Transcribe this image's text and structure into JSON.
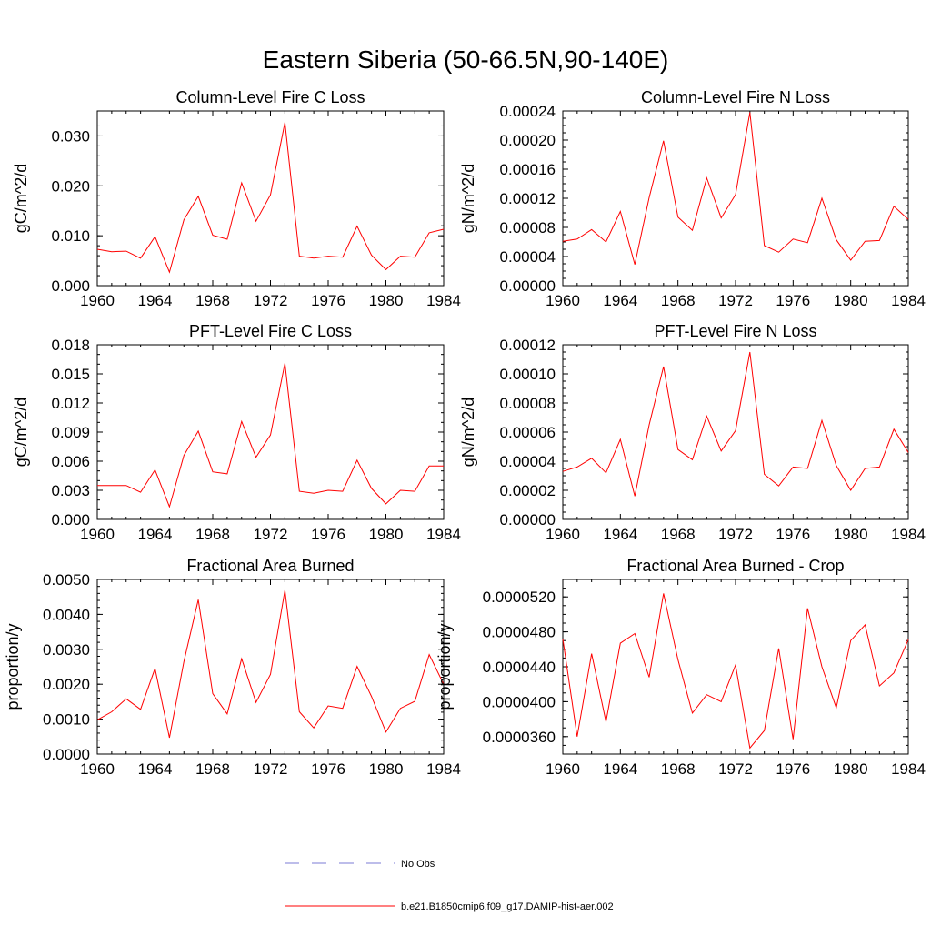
{
  "title": "Eastern Siberia (50-66.5N,90-140E)",
  "colors": {
    "model_line": "#ff0000",
    "obs_line": "#7b7bd6",
    "axis": "#000000"
  },
  "legend": {
    "entries": [
      {
        "label": "No Obs",
        "style": "dashed",
        "color": "#7b7bd6"
      },
      {
        "label": "b.e21.B1850cmip6.f09_g17.DAMIP-hist-aer.002",
        "style": "solid",
        "color": "#ff0000"
      }
    ]
  },
  "chart_data": [
    {
      "type": "line",
      "title": "Column-Level Fire C Loss",
      "ylabel": "gC/m^2/d",
      "xlim": [
        1960,
        1984
      ],
      "ylim": [
        0.0,
        0.035
      ],
      "xticks": [
        "1960",
        "1964",
        "1968",
        "1972",
        "1976",
        "1980",
        "1984"
      ],
      "yticks": [
        {
          "v": 0.0,
          "label": "0.000"
        },
        {
          "v": 0.01,
          "label": "0.010"
        },
        {
          "v": 0.02,
          "label": "0.020"
        },
        {
          "v": 0.03,
          "label": "0.030"
        }
      ],
      "yminor": 0.002,
      "x": [
        1960,
        1961,
        1962,
        1963,
        1964,
        1965,
        1966,
        1967,
        1968,
        1969,
        1970,
        1971,
        1972,
        1973,
        1974,
        1975,
        1976,
        1977,
        1978,
        1979,
        1980,
        1981,
        1982,
        1983,
        1984
      ],
      "series": [
        {
          "name": "b.e21.B1850cmip6.f09_g17.DAMIP-hist-aer.002",
          "values": [
            0.0073,
            0.0068,
            0.0069,
            0.0055,
            0.0098,
            0.0027,
            0.0132,
            0.0179,
            0.0101,
            0.0093,
            0.0206,
            0.0129,
            0.0182,
            0.0327,
            0.0059,
            0.0055,
            0.0059,
            0.0057,
            0.0119,
            0.0061,
            0.0032,
            0.0059,
            0.0057,
            0.0106,
            0.0113
          ]
        }
      ]
    },
    {
      "type": "line",
      "title": "Column-Level Fire N Loss",
      "ylabel": "gN/m^2/d",
      "xlim": [
        1960,
        1984
      ],
      "ylim": [
        0.0,
        0.00024
      ],
      "xticks": [
        "1960",
        "1964",
        "1968",
        "1972",
        "1976",
        "1980",
        "1984"
      ],
      "yticks": [
        {
          "v": 0.0,
          "label": "0.00000"
        },
        {
          "v": 4e-05,
          "label": "0.00004"
        },
        {
          "v": 8e-05,
          "label": "0.00008"
        },
        {
          "v": 0.00012,
          "label": "0.00012"
        },
        {
          "v": 0.00016,
          "label": "0.00016"
        },
        {
          "v": 0.0002,
          "label": "0.00020"
        },
        {
          "v": 0.00024,
          "label": "0.00024"
        }
      ],
      "yminor": 1e-05,
      "x": [
        1960,
        1961,
        1962,
        1963,
        1964,
        1965,
        1966,
        1967,
        1968,
        1969,
        1970,
        1971,
        1972,
        1973,
        1974,
        1975,
        1976,
        1977,
        1978,
        1979,
        1980,
        1981,
        1982,
        1983,
        1984
      ],
      "series": [
        {
          "name": "b.e21.B1850cmip6.f09_g17.DAMIP-hist-aer.002",
          "values": [
            6.1e-05,
            6.4e-05,
            7.7e-05,
            6e-05,
            0.000102,
            2.9e-05,
            0.000121,
            0.000199,
            9.4e-05,
            7.6e-05,
            0.000148,
            9.3e-05,
            0.000125,
            0.000238,
            5.5e-05,
            4.6e-05,
            6.4e-05,
            5.9e-05,
            0.00012,
            6.3e-05,
            3.5e-05,
            6.1e-05,
            6.2e-05,
            0.000109,
            9.1e-05
          ]
        }
      ]
    },
    {
      "type": "line",
      "title": "PFT-Level Fire C Loss",
      "ylabel": "gC/m^2/d",
      "xlim": [
        1960,
        1984
      ],
      "ylim": [
        0.0,
        0.018
      ],
      "xticks": [
        "1960",
        "1964",
        "1968",
        "1972",
        "1976",
        "1980",
        "1984"
      ],
      "yticks": [
        {
          "v": 0.0,
          "label": "0.000"
        },
        {
          "v": 0.003,
          "label": "0.003"
        },
        {
          "v": 0.006,
          "label": "0.006"
        },
        {
          "v": 0.009,
          "label": "0.009"
        },
        {
          "v": 0.012,
          "label": "0.012"
        },
        {
          "v": 0.015,
          "label": "0.015"
        },
        {
          "v": 0.018,
          "label": "0.018"
        }
      ],
      "yminor": 0.001,
      "x": [
        1960,
        1961,
        1962,
        1963,
        1964,
        1965,
        1966,
        1967,
        1968,
        1969,
        1970,
        1971,
        1972,
        1973,
        1974,
        1975,
        1976,
        1977,
        1978,
        1979,
        1980,
        1981,
        1982,
        1983,
        1984
      ],
      "series": [
        {
          "name": "b.e21.B1850cmip6.f09_g17.DAMIP-hist-aer.002",
          "values": [
            0.0035,
            0.0035,
            0.0035,
            0.0028,
            0.0051,
            0.0013,
            0.0066,
            0.0091,
            0.0049,
            0.0047,
            0.0101,
            0.0064,
            0.0087,
            0.0161,
            0.0029,
            0.0027,
            0.003,
            0.0029,
            0.0061,
            0.0032,
            0.0016,
            0.003,
            0.0029,
            0.0055,
            0.0055
          ]
        }
      ]
    },
    {
      "type": "line",
      "title": "PFT-Level Fire N Loss",
      "ylabel": "gN/m^2/d",
      "xlim": [
        1960,
        1984
      ],
      "ylim": [
        0.0,
        0.00012
      ],
      "xticks": [
        "1960",
        "1964",
        "1968",
        "1972",
        "1976",
        "1980",
        "1984"
      ],
      "yticks": [
        {
          "v": 0.0,
          "label": "0.00000"
        },
        {
          "v": 2e-05,
          "label": "0.00002"
        },
        {
          "v": 4e-05,
          "label": "0.00004"
        },
        {
          "v": 6e-05,
          "label": "0.00006"
        },
        {
          "v": 8e-05,
          "label": "0.00008"
        },
        {
          "v": 0.0001,
          "label": "0.00010"
        },
        {
          "v": 0.00012,
          "label": "0.00012"
        }
      ],
      "yminor": 5e-06,
      "x": [
        1960,
        1961,
        1962,
        1963,
        1964,
        1965,
        1966,
        1967,
        1968,
        1969,
        1970,
        1971,
        1972,
        1973,
        1974,
        1975,
        1976,
        1977,
        1978,
        1979,
        1980,
        1981,
        1982,
        1983,
        1984
      ],
      "series": [
        {
          "name": "b.e21.B1850cmip6.f09_g17.DAMIP-hist-aer.002",
          "values": [
            3.3e-05,
            3.6e-05,
            4.2e-05,
            3.2e-05,
            5.5e-05,
            1.6e-05,
            6.5e-05,
            0.000105,
            4.8e-05,
            4.1e-05,
            7.1e-05,
            4.7e-05,
            6.1e-05,
            0.000115,
            3.1e-05,
            2.3e-05,
            3.6e-05,
            3.5e-05,
            6.8e-05,
            3.7e-05,
            2e-05,
            3.5e-05,
            3.6e-05,
            6.2e-05,
            4.6e-05
          ]
        }
      ]
    },
    {
      "type": "line",
      "title": "Fractional Area Burned",
      "ylabel": "proportion/y",
      "xlim": [
        1960,
        1984
      ],
      "ylim": [
        0.0,
        0.005
      ],
      "xticks": [
        "1960",
        "1964",
        "1968",
        "1972",
        "1976",
        "1980",
        "1984"
      ],
      "yticks": [
        {
          "v": 0.0,
          "label": "0.0000"
        },
        {
          "v": 0.001,
          "label": "0.0010"
        },
        {
          "v": 0.002,
          "label": "0.0020"
        },
        {
          "v": 0.003,
          "label": "0.0030"
        },
        {
          "v": 0.004,
          "label": "0.0040"
        },
        {
          "v": 0.005,
          "label": "0.0050"
        }
      ],
      "yminor": 0.0002,
      "x": [
        1960,
        1961,
        1962,
        1963,
        1964,
        1965,
        1966,
        1967,
        1968,
        1969,
        1970,
        1971,
        1972,
        1973,
        1974,
        1975,
        1976,
        1977,
        1978,
        1979,
        1980,
        1981,
        1982,
        1983,
        1984
      ],
      "series": [
        {
          "name": "b.e21.B1850cmip6.f09_g17.DAMIP-hist-aer.002",
          "values": [
            0.00098,
            0.00121,
            0.00158,
            0.00128,
            0.00245,
            0.00047,
            0.00265,
            0.00442,
            0.00173,
            0.00115,
            0.00273,
            0.00148,
            0.00228,
            0.00469,
            0.00121,
            0.00075,
            0.00138,
            0.00131,
            0.00251,
            0.00165,
            0.00063,
            0.00131,
            0.00151,
            0.00285,
            0.002
          ]
        }
      ]
    },
    {
      "type": "line",
      "title": "Fractional Area Burned - Crop",
      "ylabel": "proportion/y",
      "xlim": [
        1960,
        1984
      ],
      "ylim": [
        3.4e-05,
        5.4e-05
      ],
      "xticks": [
        "1960",
        "1964",
        "1968",
        "1972",
        "1976",
        "1980",
        "1984"
      ],
      "yticks": [
        {
          "v": 3.6e-05,
          "label": "0.0000360"
        },
        {
          "v": 4e-05,
          "label": "0.0000400"
        },
        {
          "v": 4.4e-05,
          "label": "0.0000440"
        },
        {
          "v": 4.8e-05,
          "label": "0.0000480"
        },
        {
          "v": 5.2e-05,
          "label": "0.0000520"
        }
      ],
      "yminor": 1e-06,
      "x": [
        1960,
        1961,
        1962,
        1963,
        1964,
        1965,
        1966,
        1967,
        1968,
        1969,
        1970,
        1971,
        1972,
        1973,
        1974,
        1975,
        1976,
        1977,
        1978,
        1979,
        1980,
        1981,
        1982,
        1983,
        1984
      ],
      "series": [
        {
          "name": "b.e21.B1850cmip6.f09_g17.DAMIP-hist-aer.002",
          "values": [
            4.72e-05,
            3.6e-05,
            4.55e-05,
            3.77e-05,
            4.67e-05,
            4.78e-05,
            4.28e-05,
            5.24e-05,
            4.48e-05,
            3.87e-05,
            4.08e-05,
            4e-05,
            4.42e-05,
            3.47e-05,
            3.67e-05,
            4.61e-05,
            3.57e-05,
            5.07e-05,
            4.4e-05,
            3.93e-05,
            4.7e-05,
            4.88e-05,
            4.18e-05,
            4.33e-05,
            4.71e-05
          ]
        }
      ]
    }
  ]
}
